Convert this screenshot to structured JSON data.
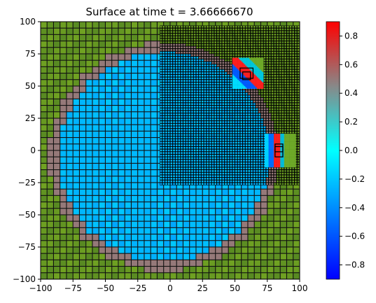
{
  "chart_data": {
    "type": "heatmap",
    "title": "Surface at time t =     3.66666670",
    "xlabel": "",
    "ylabel": "",
    "xlim": [
      -100,
      100
    ],
    "ylim": [
      -100,
      100
    ],
    "x_ticks": [
      -100,
      -75,
      -50,
      -25,
      0,
      25,
      50,
      75,
      100
    ],
    "y_ticks": [
      -100,
      -75,
      -50,
      -25,
      0,
      25,
      50,
      75,
      100
    ],
    "x_tick_labels": [
      "−100",
      "−75",
      "−50",
      "−25",
      "0",
      "25",
      "50",
      "75",
      "100"
    ],
    "y_tick_labels": [
      "−100",
      "−75",
      "−50",
      "−25",
      "0",
      "25",
      "50",
      "75",
      "100"
    ],
    "colorbar": {
      "range": [
        -0.9,
        0.9
      ],
      "ticks": [
        0.8,
        0.6,
        0.4,
        0.2,
        0.0,
        -0.2,
        -0.4,
        -0.6,
        -0.8
      ],
      "tick_labels": [
        "0.8",
        "0.6",
        "0.4",
        "0.2",
        "0.0",
        "−0.2",
        "−0.4",
        "−0.6",
        "−0.8"
      ],
      "colors": [
        "#0000ff",
        "#00ffff",
        "#888888",
        "#ff0000"
      ]
    },
    "field": {
      "circle_center": [
        -5,
        -5
      ],
      "circle_radius": 85,
      "ring_value": 0.5,
      "inside_value": -0.25,
      "outside_color": "#6a9d22"
    },
    "refinement_levels": {
      "coarse_cell": 5,
      "fine_region": {
        "x": [
          -8,
          100
        ],
        "y": [
          -27,
          97
        ],
        "cell": 2
      },
      "patches": [
        {
          "x": [
            48,
            72
          ],
          "y": [
            48,
            72
          ],
          "cell": 1
        },
        {
          "x": [
            73,
            97
          ],
          "y": [
            -13,
            13
          ],
          "cell": 1
        }
      ],
      "boxes": [
        {
          "x": [
            54,
            64
          ],
          "y": [
            56,
            64
          ]
        },
        {
          "x": [
            56,
            62
          ],
          "y": [
            55,
            61
          ]
        },
        {
          "x": [
            81,
            87
          ],
          "y": [
            -5,
            5
          ]
        },
        {
          "x": [
            81,
            87
          ],
          "y": [
            -1,
            3
          ]
        }
      ]
    }
  }
}
